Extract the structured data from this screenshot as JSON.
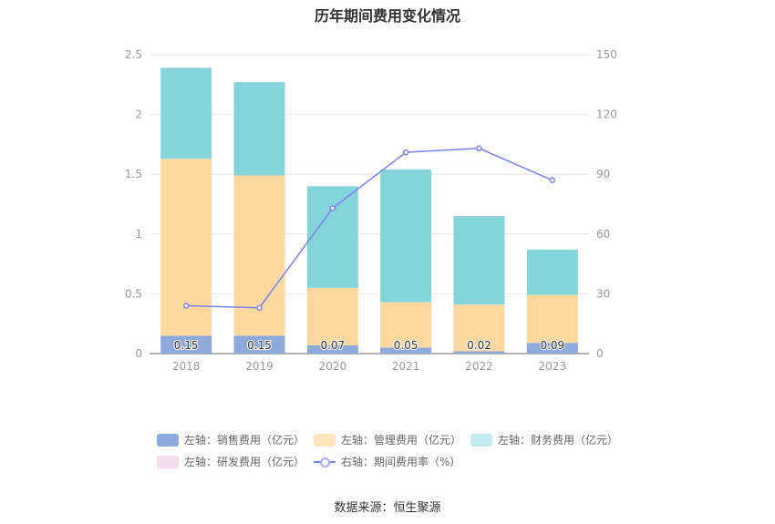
{
  "chart_data": {
    "type": "bar",
    "title": "历年期间费用变化情况",
    "categories": [
      "2018",
      "2019",
      "2020",
      "2021",
      "2022",
      "2023"
    ],
    "y_left": {
      "ylim": [
        0,
        2.5
      ],
      "ticks": [
        "0",
        "0.5",
        "1",
        "1.5",
        "2",
        "2.5"
      ]
    },
    "y_right": {
      "ylim": [
        0,
        150
      ],
      "ticks": [
        "0",
        "30",
        "60",
        "90",
        "120",
        "150"
      ]
    },
    "stacked": true,
    "series": [
      {
        "name": "左轴：销售费用（亿元）",
        "axis": "left",
        "type": "bar",
        "color": "#8eaadb",
        "values": [
          0.15,
          0.15,
          0.07,
          0.05,
          0.02,
          0.09
        ],
        "labels": [
          "0.15",
          "0.15",
          "0.07",
          "0.05",
          "0.02",
          "0.09"
        ]
      },
      {
        "name": "左轴：管理费用（亿元）",
        "axis": "left",
        "type": "bar",
        "color": "#fdd9a0",
        "values": [
          1.48,
          1.34,
          0.48,
          0.38,
          0.39,
          0.4
        ]
      },
      {
        "name": "左轴：财务费用（亿元）",
        "axis": "left",
        "type": "bar",
        "color": "#85d4d9",
        "values": [
          0.76,
          0.78,
          0.85,
          1.11,
          0.74,
          0.38
        ]
      },
      {
        "name": "左轴：研发费用（亿元）",
        "axis": "left",
        "type": "bar",
        "color": "#f3dcec",
        "values": [
          0,
          0,
          0,
          0,
          0,
          0
        ]
      },
      {
        "name": "右轴：期间费用率（%）",
        "axis": "right",
        "type": "line",
        "color": "#7b84ee",
        "values": [
          24,
          23,
          73,
          101,
          103,
          87
        ]
      }
    ],
    "legend_position": "bottom",
    "grid": true
  },
  "legend": {
    "sales": "左轴：销售费用（亿元）",
    "admin": "左轴：管理费用（亿元）",
    "finance": "左轴：财务费用（亿元）",
    "rnd": "左轴：研发费用（亿元）",
    "rate": "右轴：期间费用率（%）"
  },
  "source": "数据来源：恒生聚源"
}
